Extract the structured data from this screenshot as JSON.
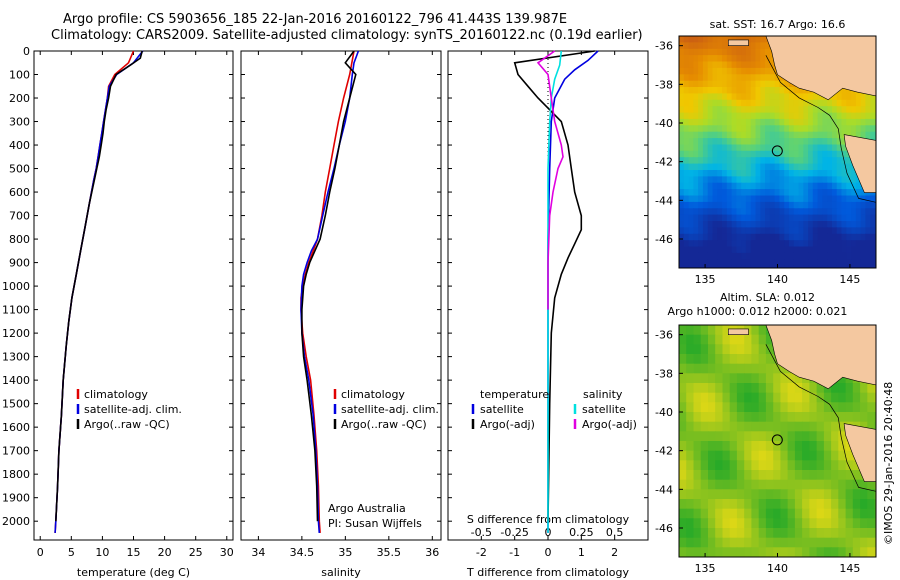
{
  "header": {
    "line1": "Argo profile: CS 5903656_185 22-Jan-2016 20160122_796 41.443S 139.987E",
    "line2": "Climatology: CARS2009. Satellite-adjusted climatology: synTS_20160122.nc (0.19d earlier)"
  },
  "colors": {
    "climatology": "#e00000",
    "satellite": "#0000e0",
    "argo": "#000000",
    "satellite_salinity": "#00e0e0",
    "argo_salinity_diff": "#e000e0"
  },
  "chart_data": [
    {
      "type": "line",
      "name": "temperature-profile",
      "xlabel": "temperature (deg C)",
      "ylabel": "",
      "xlim": [
        -1,
        31
      ],
      "ylim": [
        2080,
        0
      ],
      "xticks": [
        0,
        5,
        10,
        15,
        20,
        25,
        30
      ],
      "yticks": [
        0,
        100,
        200,
        300,
        400,
        500,
        600,
        700,
        800,
        900,
        1000,
        1100,
        1200,
        1300,
        1400,
        1500,
        1600,
        1700,
        1800,
        1900,
        2000
      ],
      "legend": {
        "placement": "lower-middle",
        "entries": [
          "climatology",
          "satellite-adj. clim.",
          "Argo(..raw -QC)"
        ]
      },
      "series": [
        {
          "name": "climatology",
          "color_key": "climatology",
          "x": [
            15.0,
            14.2,
            12.0,
            11.0,
            10.8,
            10.5,
            10.2,
            9.9,
            9.6,
            9.3,
            9.0,
            8.6,
            7.9,
            7.2,
            6.5,
            5.8,
            5.1,
            4.6,
            4.2,
            3.7,
            3.4,
            3.0,
            2.8,
            2.6,
            2.5,
            2.4
          ],
          "y": [
            0,
            50,
            100,
            150,
            200,
            250,
            300,
            350,
            400,
            450,
            500,
            550,
            650,
            750,
            850,
            950,
            1050,
            1150,
            1250,
            1400,
            1550,
            1700,
            1850,
            1950,
            2000,
            2050
          ]
        },
        {
          "name": "satellite-adj. clim.",
          "color_key": "satellite",
          "x": [
            16.5,
            15.0,
            12.3,
            11.1,
            10.8,
            10.5,
            10.2,
            9.9,
            9.6,
            9.3,
            9.0,
            8.6,
            7.9,
            7.2,
            6.5,
            5.8,
            5.1,
            4.6,
            4.2,
            3.7,
            3.4,
            3.0,
            2.8,
            2.6,
            2.5,
            2.4
          ],
          "y": [
            0,
            50,
            100,
            150,
            200,
            250,
            300,
            350,
            400,
            450,
            500,
            550,
            650,
            750,
            850,
            950,
            1050,
            1150,
            1250,
            1400,
            1550,
            1700,
            1850,
            1950,
            2000,
            2050
          ]
        },
        {
          "name": "Argo(..raw -QC)",
          "color_key": "argo",
          "x": [
            16.4,
            16.1,
            14.5,
            12.2,
            11.3,
            11.0,
            10.6,
            10.3,
            10.1,
            9.8,
            9.5,
            9.1,
            8.7,
            7.9,
            7.2,
            6.5,
            5.8,
            5.1,
            4.6,
            4.2,
            3.7,
            3.4,
            3.0,
            2.8,
            2.6,
            2.5
          ],
          "y": [
            0,
            30,
            60,
            100,
            150,
            200,
            250,
            300,
            350,
            400,
            450,
            500,
            550,
            650,
            750,
            850,
            950,
            1050,
            1150,
            1250,
            1400,
            1550,
            1700,
            1850,
            1950,
            2000
          ]
        }
      ]
    },
    {
      "type": "line",
      "name": "salinity-profile",
      "xlabel": "salinity",
      "ylabel": "",
      "xlim": [
        33.8,
        36.1
      ],
      "ylim": [
        2080,
        0
      ],
      "xticks": [
        34,
        34.5,
        35,
        35.5,
        36
      ],
      "xticklabels": [
        "34",
        "34.5",
        "35",
        "35.5",
        "36"
      ],
      "legend": {
        "placement": "lower-right",
        "entries": [
          "climatology",
          "satellite-adj. clim.",
          "Argo(..raw -QC)"
        ]
      },
      "annotation": [
        "Argo Australia",
        "PI: Susan Wijffels"
      ],
      "series": [
        {
          "name": "climatology",
          "color_key": "climatology",
          "x": [
            35.1,
            35.05,
            34.98,
            34.92,
            34.87,
            34.82,
            34.77,
            34.73,
            34.68,
            34.63,
            34.58,
            34.54,
            34.51,
            34.49,
            34.49,
            34.51,
            34.55,
            34.6,
            34.64,
            34.67,
            34.69,
            34.7,
            34.71
          ],
          "y": [
            0,
            100,
            200,
            300,
            400,
            500,
            600,
            700,
            800,
            850,
            900,
            950,
            1000,
            1050,
            1100,
            1200,
            1300,
            1400,
            1550,
            1700,
            1850,
            2000,
            2050
          ]
        },
        {
          "name": "satellite-adj. clim.",
          "color_key": "satellite",
          "x": [
            35.15,
            35.1,
            35.08,
            35.05,
            35.0,
            34.93,
            34.87,
            34.8,
            34.74,
            34.68,
            34.61,
            34.56,
            34.52,
            34.5,
            34.49,
            34.5,
            34.53,
            34.58,
            34.63,
            34.66,
            34.68,
            34.69,
            34.7
          ],
          "y": [
            0,
            50,
            100,
            200,
            300,
            400,
            500,
            600,
            700,
            800,
            850,
            900,
            950,
            1000,
            1100,
            1200,
            1300,
            1400,
            1550,
            1700,
            1850,
            2000,
            2050
          ]
        },
        {
          "name": "Argo(..raw -QC)",
          "color_key": "argo",
          "x": [
            35.1,
            35.0,
            35.12,
            35.05,
            34.98,
            34.93,
            34.88,
            34.82,
            34.77,
            34.71,
            34.65,
            34.59,
            34.55,
            34.52,
            34.5,
            34.5,
            34.52,
            34.56,
            34.61,
            34.65,
            34.67,
            34.68
          ],
          "y": [
            0,
            50,
            100,
            200,
            300,
            400,
            500,
            600,
            700,
            800,
            850,
            900,
            950,
            1000,
            1100,
            1200,
            1300,
            1400,
            1550,
            1700,
            1850,
            2000
          ]
        }
      ]
    },
    {
      "type": "line",
      "name": "difference-profile",
      "xlabel": "T difference from climatology",
      "xlabel2": "S difference from climatology",
      "xlim": [
        -3,
        3
      ],
      "ylim": [
        2080,
        0
      ],
      "xticks": [
        -2,
        -1,
        0,
        1,
        2
      ],
      "xticks_top": [
        -0.5,
        -0.25,
        0,
        0.25,
        0.5
      ],
      "xticklabels_top": [
        "-0.5",
        "-0.25",
        "0",
        "0.25",
        "0.5"
      ],
      "legend": {
        "placement": "lower",
        "groups": [
          {
            "title": "temperature",
            "entries": [
              "satellite",
              "Argo(-adj)"
            ]
          },
          {
            "title": "salinity",
            "entries": [
              "satellite",
              "Argo(-adj)"
            ]
          }
        ]
      },
      "series": [
        {
          "name": "temperature satellite",
          "color_key": "satellite",
          "x": [
            1.5,
            1.2,
            0.8,
            0.5,
            0.2,
            0.1,
            0.05,
            0.0,
            0.0,
            0.0,
            0.0,
            0.0
          ],
          "y": [
            0,
            40,
            80,
            120,
            200,
            300,
            500,
            800,
            1100,
            1400,
            1700,
            2050
          ]
        },
        {
          "name": "temperature Argo(-adj)",
          "color_key": "argo",
          "x": [
            1.4,
            -1.0,
            -0.9,
            -0.6,
            -0.3,
            0.4,
            0.6,
            0.7,
            0.8,
            1.0,
            1.0,
            0.8,
            0.6,
            0.4,
            0.2,
            0.1,
            0.05,
            0.0
          ],
          "y": [
            0,
            50,
            100,
            150,
            200,
            300,
            400,
            500,
            600,
            700,
            760,
            820,
            880,
            950,
            1050,
            1200,
            1500,
            2000
          ]
        },
        {
          "name": "salinity satellite",
          "color_key": "satellite_salinity",
          "x": [
            0.4,
            0.35,
            0.2,
            0.1,
            0.05,
            0.0,
            0.0,
            0.0,
            0.0,
            0.0
          ],
          "y": [
            0,
            60,
            120,
            200,
            300,
            500,
            800,
            1100,
            1500,
            2050
          ]
        },
        {
          "name": "salinity Argo(-adj)",
          "color_key": "argo_salinity_diff",
          "x": [
            0.2,
            -0.3,
            0.0,
            0.1,
            0.2,
            0.4,
            0.45,
            0.3,
            0.15,
            0.05,
            0.0,
            0.0
          ],
          "y": [
            0,
            50,
            100,
            200,
            300,
            400,
            450,
            500,
            600,
            700,
            900,
            1100
          ]
        }
      ]
    },
    {
      "type": "heatmap",
      "name": "sst-map",
      "title": "sat. SST: 16.7  Argo: 16.6",
      "xlim": [
        133.2,
        146.8
      ],
      "ylim": [
        -47.5,
        -35.5
      ],
      "xticks": [
        135,
        140,
        145
      ],
      "yticks": [
        -36,
        -38,
        -40,
        -42,
        -44,
        -46
      ],
      "marker": {
        "lon": 139.987,
        "lat": -41.443
      }
    },
    {
      "type": "heatmap",
      "name": "sla-map",
      "title": "Altim. SLA: 0.012",
      "subtitle": "Argo h1000: 0.012 h2000: 0.021",
      "xlim": [
        133.2,
        146.8
      ],
      "ylim": [
        -47.5,
        -35.5
      ],
      "xticks": [
        135,
        140,
        145
      ],
      "yticks": [
        -36,
        -38,
        -40,
        -42,
        -44,
        -46
      ],
      "marker": {
        "lon": 139.987,
        "lat": -41.443
      }
    }
  ],
  "side_label": "©IMOS 29-Jan-2016 20:40:48"
}
